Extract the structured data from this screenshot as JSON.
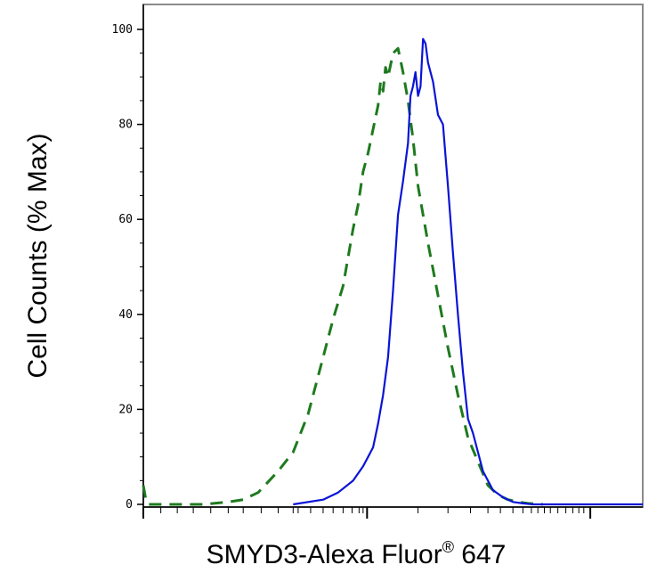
{
  "chart_data": {
    "type": "line",
    "title": "",
    "xlabel": "SMYD3-Alexa Fluor",
    "xlabel_superscript": "®",
    "xlabel_suffix": " 647",
    "ylabel": "Cell Counts (% Max)",
    "ylim": [
      0,
      105
    ],
    "xlim": [
      0,
      1
    ],
    "x_scale": "log (biexponential)",
    "y_ticks": [
      0,
      20,
      40,
      60,
      80,
      100
    ],
    "y_tick_labels": [
      "0",
      "20",
      "40",
      "60",
      "80",
      "100"
    ],
    "grid": false,
    "legend": "none",
    "series": [
      {
        "style": "dashed",
        "color": "#1e7a1e",
        "x": [
          0.0,
          0.005,
          0.01,
          0.03,
          0.07,
          0.12,
          0.17,
          0.2,
          0.23,
          0.27,
          0.3,
          0.33,
          0.36,
          0.38,
          0.4,
          0.42,
          0.43,
          0.44,
          0.45,
          0.46,
          0.47,
          0.475,
          0.48,
          0.485,
          0.49,
          0.5,
          0.51,
          0.52,
          0.53,
          0.54,
          0.55,
          0.57,
          0.59,
          0.61,
          0.63,
          0.65,
          0.67,
          0.69,
          0.71,
          0.73,
          0.75,
          0.77,
          0.8
        ],
        "y": [
          4,
          1,
          0,
          0,
          0,
          0,
          0.5,
          1,
          2.5,
          7,
          11,
          19,
          31,
          39,
          46,
          58,
          63,
          70,
          74,
          79,
          84,
          89,
          87,
          92,
          90,
          95,
          96,
          91,
          85,
          77,
          67,
          55,
          44,
          33,
          23,
          14,
          9,
          4,
          2,
          1,
          0.5,
          0.2,
          0
        ]
      },
      {
        "style": "solid",
        "color": "#0a14d6",
        "x": [
          0.3,
          0.36,
          0.39,
          0.42,
          0.44,
          0.45,
          0.46,
          0.47,
          0.48,
          0.49,
          0.5,
          0.51,
          0.52,
          0.53,
          0.535,
          0.54,
          0.545,
          0.55,
          0.555,
          0.56,
          0.565,
          0.57,
          0.58,
          0.59,
          0.6,
          0.61,
          0.62,
          0.63,
          0.64,
          0.65,
          0.66,
          0.67,
          0.68,
          0.7,
          0.72,
          0.74,
          0.76,
          0.78,
          0.8,
          0.83,
          0.86,
          0.9,
          1.0
        ],
        "y": [
          0,
          1,
          2.5,
          5,
          8,
          10,
          12,
          17,
          23,
          31,
          45,
          61,
          68,
          76,
          86,
          88,
          91,
          86,
          88,
          98,
          97,
          93,
          89,
          82,
          80,
          67,
          53,
          40,
          28,
          18,
          15,
          11,
          7,
          3,
          1.5,
          0.5,
          0.2,
          0,
          0,
          0,
          0,
          0,
          0
        ]
      }
    ]
  }
}
